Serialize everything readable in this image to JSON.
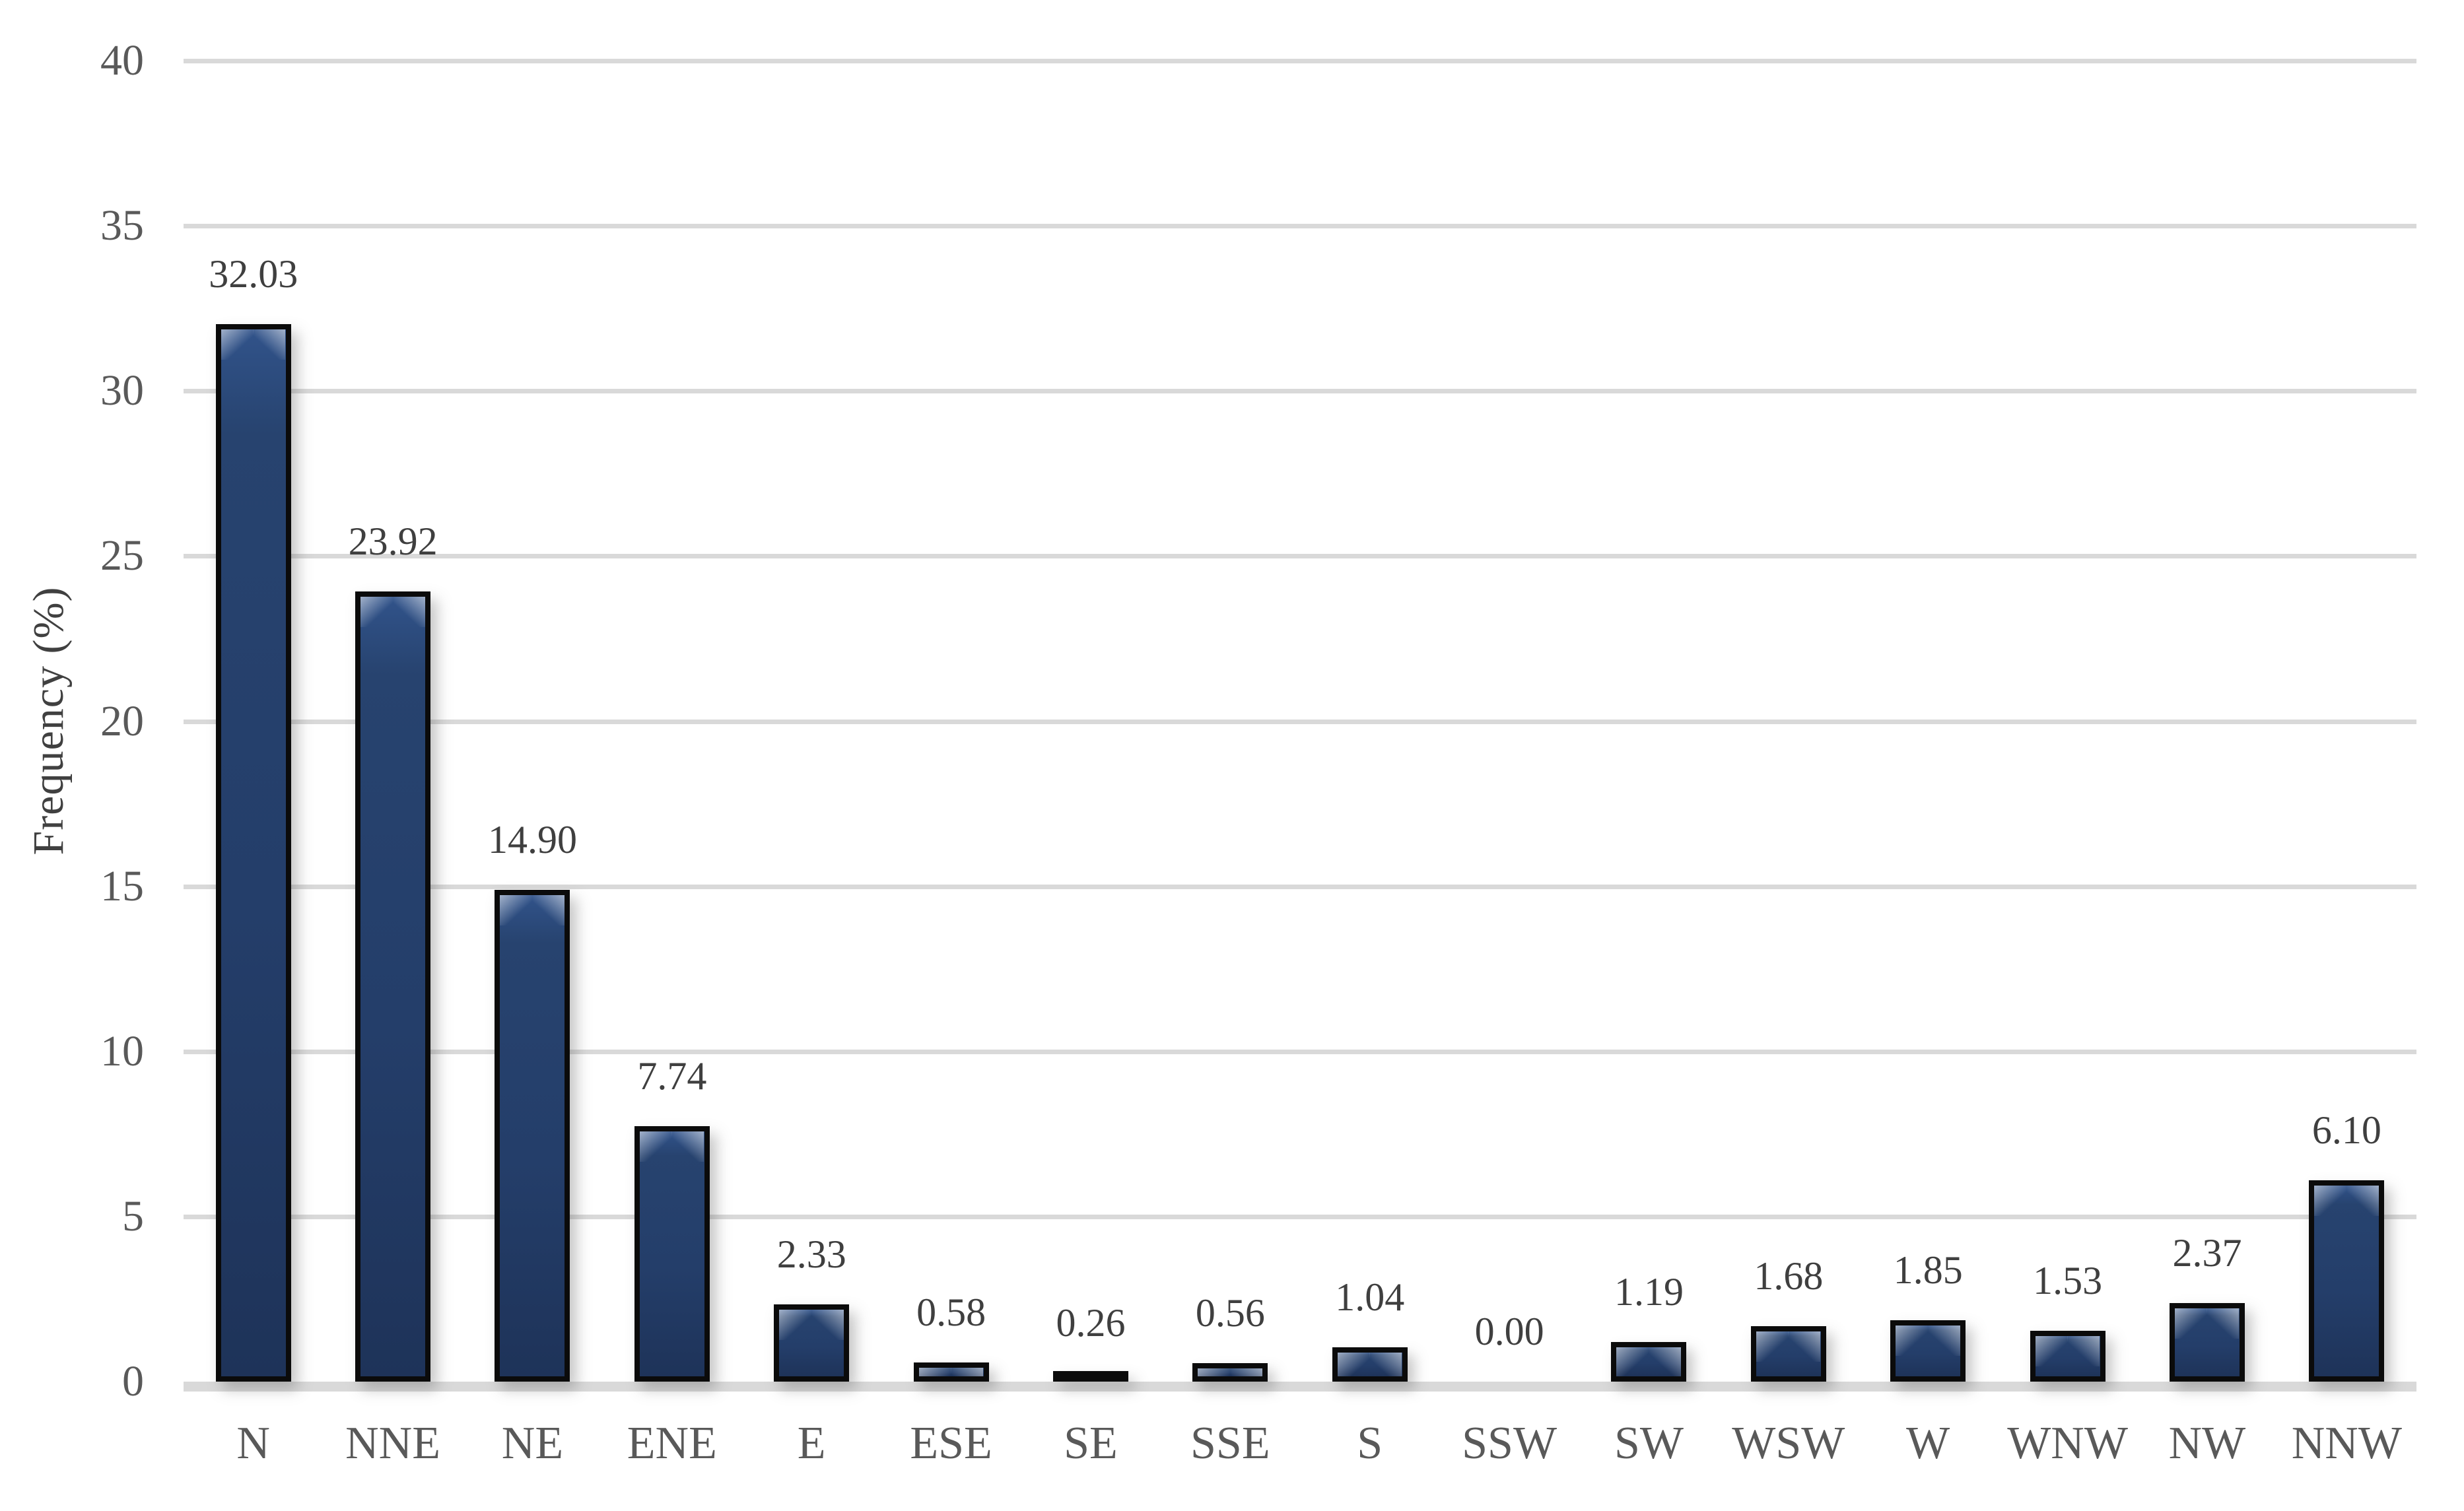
{
  "chart_data": {
    "type": "bar",
    "title": "",
    "xlabel": "",
    "ylabel": "Frequency (%)",
    "ylim": [
      0,
      40
    ],
    "yticks": [
      0,
      5,
      10,
      15,
      20,
      25,
      30,
      35,
      40
    ],
    "grid": true,
    "legend_position": "none",
    "categories": [
      "N",
      "NNE",
      "NE",
      "ENE",
      "E",
      "ESE",
      "SE",
      "SSE",
      "S",
      "SSW",
      "SW",
      "WSW",
      "W",
      "WNW",
      "NW",
      "NNW"
    ],
    "values": [
      32.03,
      23.92,
      14.9,
      7.74,
      2.33,
      0.58,
      0.26,
      0.56,
      1.04,
      0.0,
      1.19,
      1.68,
      1.85,
      1.53,
      2.37,
      6.1
    ],
    "value_labels": [
      "32.03",
      "23.92",
      "14.90",
      "7.74",
      "2.33",
      "0.58",
      "0.26",
      "0.56",
      "1.04",
      "0.00",
      "1.19",
      "1.68",
      "1.85",
      "1.53",
      "2.37",
      "6.10"
    ]
  },
  "colors": {
    "background": "#ffffff",
    "bar_fill": "#24406F",
    "bar_border": "#0b0b0b",
    "gridline": "#d9d9d9",
    "axis_line": "#d9d9d9",
    "tick_label": "#595959",
    "data_label": "#3f3f3f",
    "axis_title": "#404040"
  }
}
